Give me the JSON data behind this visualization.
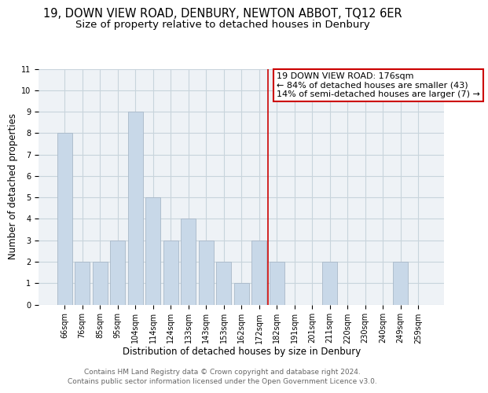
{
  "title": "19, DOWN VIEW ROAD, DENBURY, NEWTON ABBOT, TQ12 6ER",
  "subtitle": "Size of property relative to detached houses in Denbury",
  "xlabel": "Distribution of detached houses by size in Denbury",
  "ylabel": "Number of detached properties",
  "bar_labels": [
    "66sqm",
    "76sqm",
    "85sqm",
    "95sqm",
    "104sqm",
    "114sqm",
    "124sqm",
    "133sqm",
    "143sqm",
    "153sqm",
    "162sqm",
    "172sqm",
    "182sqm",
    "191sqm",
    "201sqm",
    "211sqm",
    "220sqm",
    "230sqm",
    "240sqm",
    "249sqm",
    "259sqm"
  ],
  "bar_heights": [
    8,
    2,
    2,
    3,
    9,
    5,
    3,
    4,
    3,
    2,
    1,
    3,
    2,
    0,
    0,
    2,
    0,
    0,
    0,
    2,
    0
  ],
  "bar_color": "#c8d8e8",
  "bar_edge_color": "#a8b8c8",
  "grid_color": "#c8d4dc",
  "bg_color": "#eef2f6",
  "annotation_box_text": "19 DOWN VIEW ROAD: 176sqm\n← 84% of detached houses are smaller (43)\n14% of semi-detached houses are larger (7) →",
  "annotation_box_color": "#ffffff",
  "annotation_box_edge_color": "#cc0000",
  "annotation_line_color": "#cc0000",
  "ylim": [
    0,
    11
  ],
  "yticks": [
    0,
    1,
    2,
    3,
    4,
    5,
    6,
    7,
    8,
    9,
    10,
    11
  ],
  "footer_line1": "Contains HM Land Registry data © Crown copyright and database right 2024.",
  "footer_line2": "Contains public sector information licensed under the Open Government Licence v3.0.",
  "title_fontsize": 10.5,
  "subtitle_fontsize": 9.5,
  "axis_label_fontsize": 8.5,
  "tick_fontsize": 7,
  "annotation_fontsize": 8,
  "footer_fontsize": 6.5
}
